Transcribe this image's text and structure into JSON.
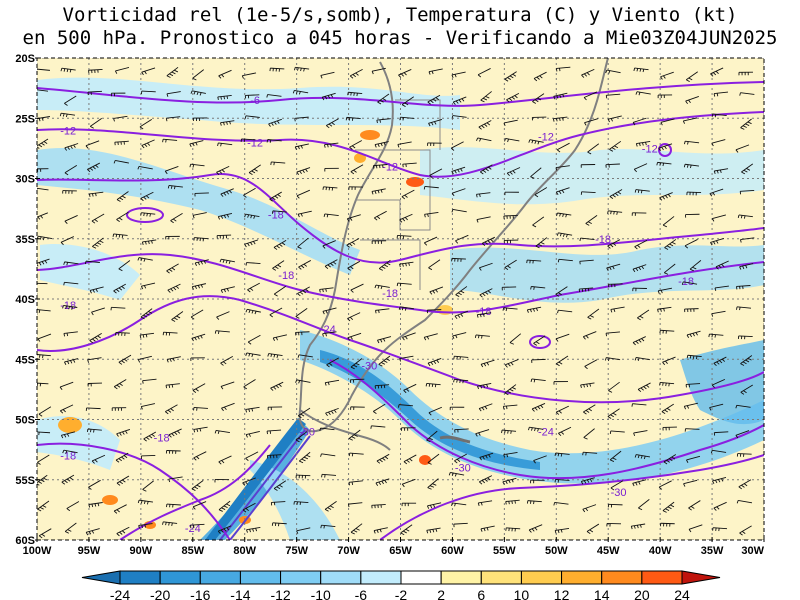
{
  "title": {
    "line1": "Vorticidad rel (1e-5/s,somb), Temperatura (C) y Viento (kt)",
    "line2": "en 500 hPa. Pronostico a 045 horas - Verificando a Mie03Z04JUN2025"
  },
  "map": {
    "lat_labels": [
      "20S",
      "25S",
      "30S",
      "35S",
      "40S",
      "45S",
      "50S",
      "55S",
      "60S"
    ],
    "lon_labels": [
      "100W",
      "95W",
      "90W",
      "85W",
      "80W",
      "75W",
      "70W",
      "65W",
      "60W",
      "55W",
      "50W",
      "45W",
      "40W",
      "35W",
      "30W"
    ],
    "lat_values": [
      -20,
      -25,
      -30,
      -35,
      -40,
      -45,
      -50,
      -55,
      -60
    ],
    "lon_values": [
      -100,
      -95,
      -90,
      -85,
      -80,
      -75,
      -70,
      -65,
      -60,
      -55,
      -50,
      -45,
      -40,
      -35,
      -30
    ],
    "lat_range": [
      -60,
      -20
    ],
    "lon_range": [
      -100,
      -30
    ],
    "grid": true,
    "contour_color": "#8a1fe0",
    "temperature_labels": [
      {
        "text": "-6",
        "lon": -79,
        "lat": -23.5
      },
      {
        "text": "-12",
        "lon": -97,
        "lat": -26
      },
      {
        "text": "-12",
        "lon": -79,
        "lat": -27
      },
      {
        "text": "-12",
        "lon": -66,
        "lat": -29
      },
      {
        "text": "-12",
        "lon": -51,
        "lat": -26.5
      },
      {
        "text": "-12",
        "lon": -41,
        "lat": -27.5
      },
      {
        "text": "-18",
        "lon": -77,
        "lat": -33
      },
      {
        "text": "-18",
        "lon": -76,
        "lat": -38
      },
      {
        "text": "-18",
        "lon": -66,
        "lat": -39.5
      },
      {
        "text": "-18",
        "lon": -97,
        "lat": -40.5
      },
      {
        "text": "-18",
        "lon": -57,
        "lat": -41
      },
      {
        "text": "-18",
        "lon": -45.5,
        "lat": -35
      },
      {
        "text": "-18",
        "lon": -37.5,
        "lat": -38.5
      },
      {
        "text": "-18",
        "lon": -88,
        "lat": -51.5
      },
      {
        "text": "-18",
        "lon": -97,
        "lat": -53
      },
      {
        "text": "-24",
        "lon": -72,
        "lat": -42.5
      },
      {
        "text": "-24",
        "lon": -51,
        "lat": -51
      },
      {
        "text": "-24",
        "lon": -85,
        "lat": -59
      },
      {
        "text": "-30",
        "lon": -68,
        "lat": -45.5
      },
      {
        "text": "-30",
        "lon": -74,
        "lat": -51
      },
      {
        "text": "-30",
        "lon": -59,
        "lat": -54
      },
      {
        "text": "-30",
        "lon": -44,
        "lat": -56
      }
    ]
  },
  "colorbar": {
    "labels": [
      "-24",
      "-20",
      "-16",
      "-14",
      "-12",
      "-10",
      "-6",
      "-2",
      "2",
      "6",
      "10",
      "12",
      "14",
      "20",
      "24"
    ],
    "colors": [
      "#1f7fc4",
      "#2f96d6",
      "#47a9e2",
      "#62bcec",
      "#7fcdf3",
      "#a0dcf8",
      "#c2ecfc",
      "#ffffff",
      "#fff3a6",
      "#ffe27a",
      "#ffcc4f",
      "#ffae2e",
      "#ff8a1e",
      "#ff5a14"
    ],
    "low_arrow_color": "#1a6fb0",
    "high_arrow_color": "#c0140c"
  }
}
